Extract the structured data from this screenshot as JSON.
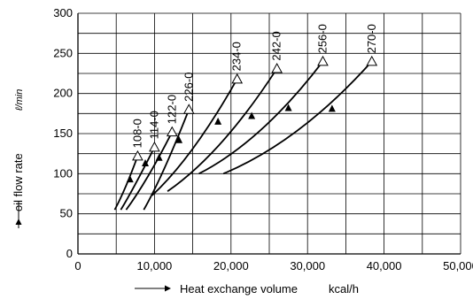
{
  "chart_data": {
    "type": "line",
    "xlabel": "Heat exchange volume",
    "xunit": "kcal/h",
    "ylabel": "oil flow rate",
    "yunit": "ℓ/min",
    "xlim": [
      0,
      50000
    ],
    "ylim": [
      0,
      300
    ],
    "xticks": [
      0,
      10000,
      20000,
      30000,
      40000,
      50000
    ],
    "xtick_labels": [
      "0",
      "10,000",
      "20,000",
      "30,000",
      "40,000",
      "50,000"
    ],
    "yticks": [
      0,
      50,
      100,
      150,
      200,
      250,
      300
    ],
    "ytick_labels": [
      "0",
      "50",
      "100",
      "150",
      "200",
      "250",
      "300"
    ],
    "grid": true,
    "series": [
      {
        "name": "108-0",
        "x": [
          4800,
          6200,
          7800
        ],
        "y": [
          55,
          80,
          122
        ],
        "marker_x": 6800,
        "marker_y": 93,
        "end_x": 7800,
        "end_y": 122
      },
      {
        "name": "114-0",
        "x": [
          5600,
          7200,
          10000
        ],
        "y": [
          55,
          80,
          133
        ],
        "marker_x": 8800,
        "marker_y": 113,
        "end_x": 10000,
        "end_y": 133
      },
      {
        "name": "122-0",
        "x": [
          6300,
          9000,
          12300
        ],
        "y": [
          55,
          90,
          152
        ],
        "marker_x": 10600,
        "marker_y": 120,
        "end_x": 12300,
        "end_y": 152
      },
      {
        "name": "226-0",
        "x": [
          8600,
          11000,
          14500
        ],
        "y": [
          55,
          95,
          180
        ],
        "marker_x": 13200,
        "marker_y": 142,
        "end_x": 14500,
        "end_y": 180
      },
      {
        "name": "234-0",
        "x": [
          9700,
          15000,
          20800
        ],
        "y": [
          73,
          120,
          218
        ],
        "marker_x": 18300,
        "marker_y": 165,
        "end_x": 20800,
        "end_y": 218
      },
      {
        "name": "242-0",
        "x": [
          11700,
          18800,
          26000
        ],
        "y": [
          78,
          125,
          231
        ],
        "marker_x": 22700,
        "marker_y": 172,
        "end_x": 26000,
        "end_y": 231
      },
      {
        "name": "256-0",
        "x": [
          15800,
          24000,
          32000
        ],
        "y": [
          100,
          140,
          240
        ],
        "marker_x": 27500,
        "marker_y": 182,
        "end_x": 32000,
        "end_y": 240
      },
      {
        "name": "270-0",
        "x": [
          19000,
          29000,
          38400
        ],
        "y": [
          100,
          140,
          240
        ],
        "marker_x": 33200,
        "marker_y": 181,
        "end_x": 38400,
        "end_y": 240
      }
    ]
  }
}
